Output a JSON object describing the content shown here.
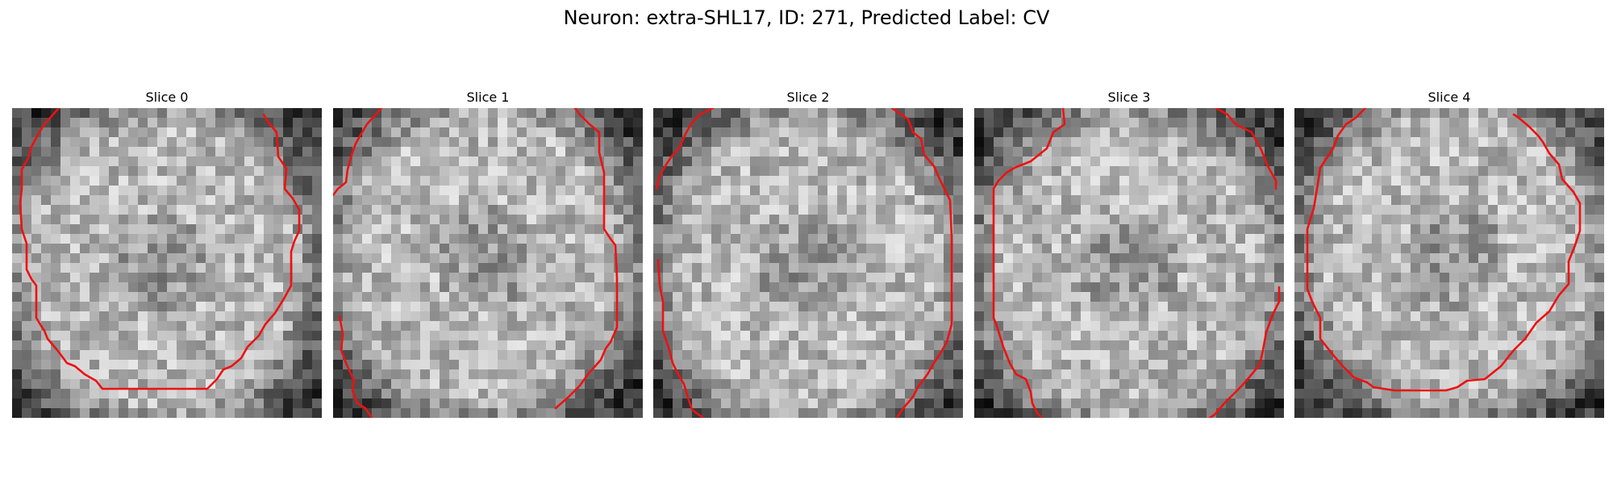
{
  "figure": {
    "title": "Neuron: extra-SHL17, ID: 271, Predicted Label: CV",
    "colormap": "gray",
    "contour_color": "#ee1111"
  },
  "slices": [
    {
      "title": "Slice 0"
    },
    {
      "title": "Slice 1"
    },
    {
      "title": "Slice 2"
    },
    {
      "title": "Slice 3"
    },
    {
      "title": "Slice 4"
    }
  ]
}
